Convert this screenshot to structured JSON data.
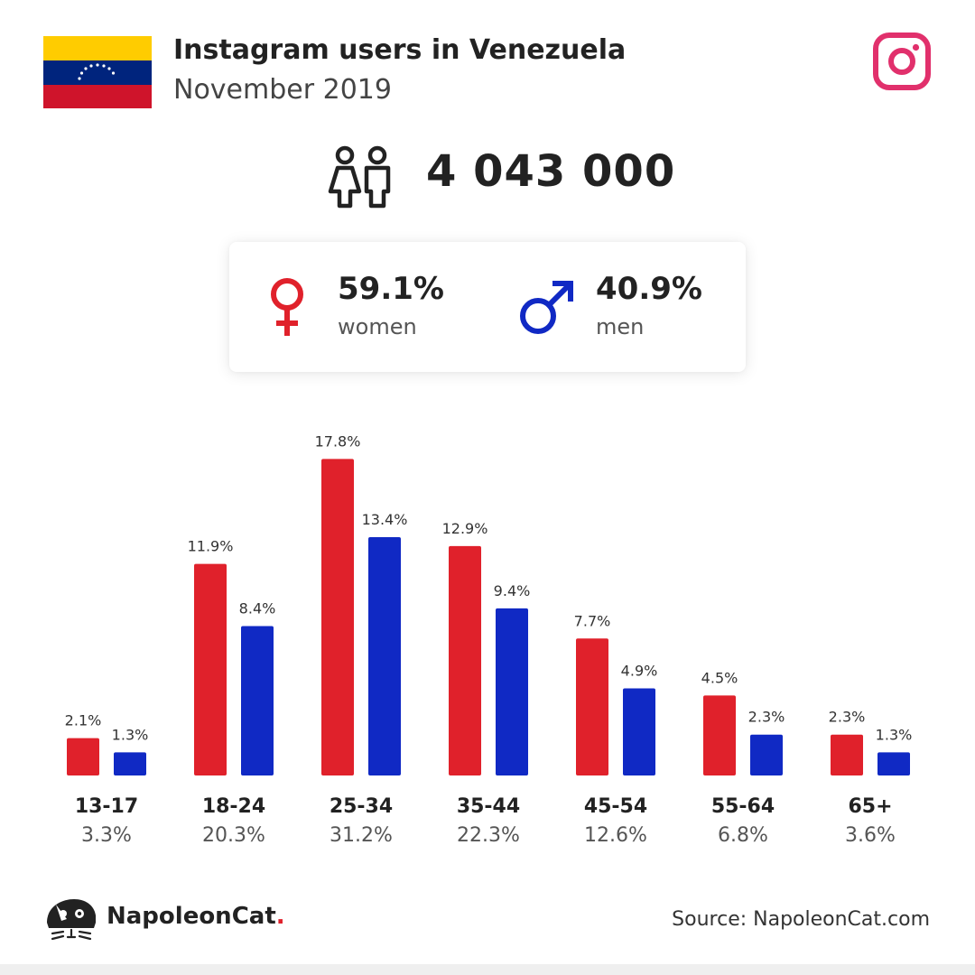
{
  "header": {
    "title": "Instagram users in Venezuela",
    "subtitle": "November 2019"
  },
  "total_users": "4 043 000",
  "gender": {
    "women_pct": "59.1%",
    "women_label": "women",
    "men_pct": "40.9%",
    "men_label": "men"
  },
  "colors": {
    "women": "#e0212b",
    "men": "#1029c4",
    "instagram": "#e1306c",
    "flag_yellow": "#ffcc00",
    "flag_blue": "#00247d",
    "flag_red": "#cf142b"
  },
  "icons": {
    "flag": "venezuela-flag",
    "instagram": "instagram-icon",
    "users": "users-icon",
    "female": "female-symbol-icon",
    "male": "male-symbol-icon",
    "logo": "napoleoncat-logo-icon"
  },
  "chart_data": {
    "type": "bar",
    "categories": [
      "13-17",
      "18-24",
      "25-34",
      "35-44",
      "45-54",
      "55-64",
      "65+"
    ],
    "category_totals": [
      "3.3%",
      "20.3%",
      "31.2%",
      "22.3%",
      "12.6%",
      "6.8%",
      "3.6%"
    ],
    "series": [
      {
        "values": [
          2.1,
          11.9,
          17.8,
          12.9,
          7.7,
          4.5,
          2.3
        ],
        "labels": [
          "2.1%",
          "11.9%",
          "17.8%",
          "12.9%",
          "7.7%",
          "4.5%",
          "2.3%"
        ],
        "color": "#e0212b"
      },
      {
        "values": [
          1.3,
          8.4,
          13.4,
          9.4,
          4.9,
          2.3,
          1.3
        ],
        "labels": [
          "1.3%",
          "8.4%",
          "13.4%",
          "9.4%",
          "4.9%",
          "2.3%",
          "1.3%"
        ],
        "color": "#1029c4"
      }
    ],
    "title": "",
    "xlabel": "",
    "ylabel": "",
    "grid": false
  },
  "footer": {
    "brand": "NapoleonCat",
    "brand_dot": ".",
    "source": "Source: NapoleonCat.com"
  }
}
